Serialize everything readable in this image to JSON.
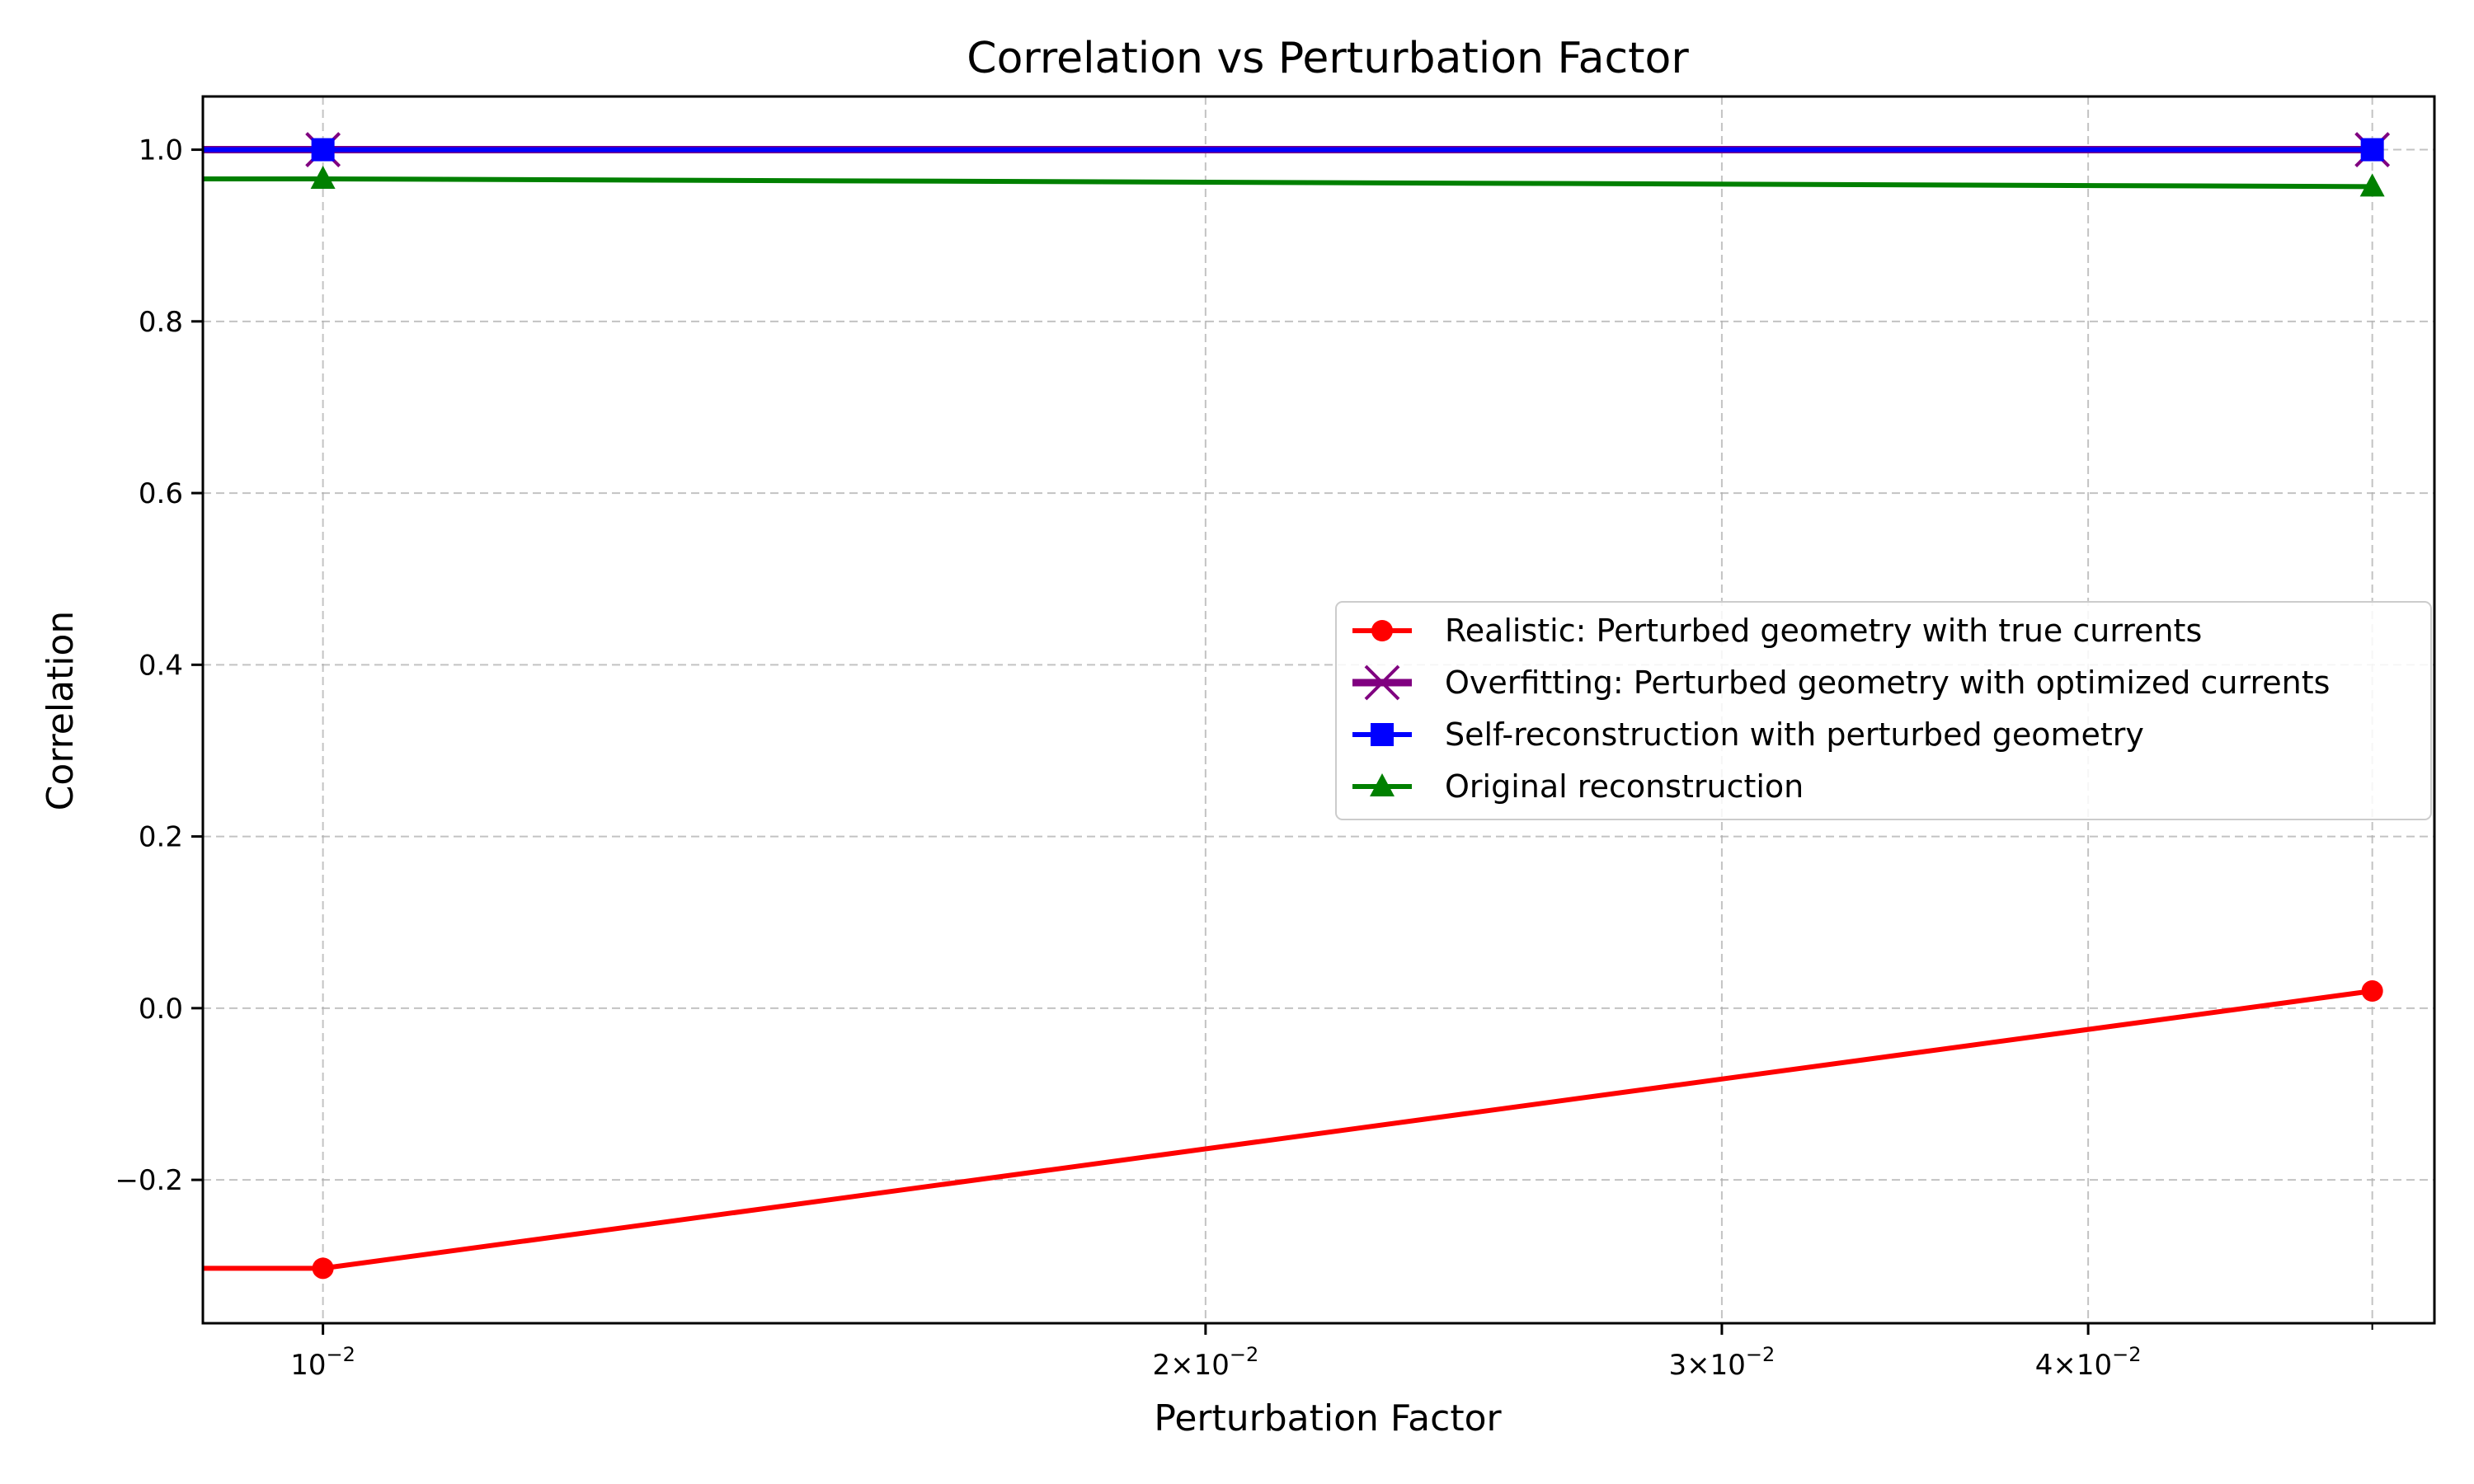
{
  "chart_data": {
    "type": "line",
    "title": "Correlation vs Perturbation Factor",
    "xlabel": "Perturbation Factor",
    "ylabel": "Correlation",
    "xscale": "log",
    "xlim": [
      0.0091,
      0.0525
    ],
    "ylim": [
      -0.367,
      1.062
    ],
    "grid": true,
    "legend_position": "center-right",
    "x_ticks": [
      {
        "value": 0.01,
        "base": "10",
        "exp": "−2"
      },
      {
        "value": 0.02,
        "base": "2×10",
        "exp": "−2"
      },
      {
        "value": 0.03,
        "base": "3×10",
        "exp": "−2"
      },
      {
        "value": 0.04,
        "base": "4×10",
        "exp": "−2"
      }
    ],
    "x_grid_values": [
      0.01,
      0.02,
      0.03,
      0.04,
      0.05
    ],
    "y_ticks": [
      {
        "value": -0.2,
        "label": "−0.2"
      },
      {
        "value": 0.0,
        "label": "0.0"
      },
      {
        "value": 0.2,
        "label": "0.2"
      },
      {
        "value": 0.4,
        "label": "0.4"
      },
      {
        "value": 0.6,
        "label": "0.6"
      },
      {
        "value": 0.8,
        "label": "0.8"
      },
      {
        "value": 1.0,
        "label": "1.0"
      }
    ],
    "series": [
      {
        "name": "Realistic: Perturbed geometry with true currents",
        "color": "#ff0000",
        "marker": "circle",
        "points": [
          [
            0.005,
            -0.303
          ],
          [
            0.01,
            -0.303
          ],
          [
            0.05,
            0.02
          ]
        ],
        "marker_points": [
          [
            0.01,
            -0.303
          ],
          [
            0.05,
            0.02
          ]
        ]
      },
      {
        "name": "Overfitting: Perturbed geometry with optimized currents",
        "color": "#800080",
        "marker": "x",
        "points": [
          [
            0.005,
            1.0
          ],
          [
            0.01,
            1.0
          ],
          [
            0.05,
            1.0
          ]
        ],
        "marker_points": [
          [
            0.01,
            1.0
          ],
          [
            0.05,
            1.0
          ]
        ]
      },
      {
        "name": "Self-reconstruction with perturbed geometry",
        "color": "#0000ff",
        "marker": "square",
        "points": [
          [
            0.005,
            1.0
          ],
          [
            0.01,
            1.0
          ],
          [
            0.05,
            1.0
          ]
        ],
        "marker_points": [
          [
            0.01,
            1.0
          ],
          [
            0.05,
            1.0
          ]
        ]
      },
      {
        "name": "Original reconstruction",
        "color": "#008000",
        "marker": "triangle",
        "points": [
          [
            0.005,
            0.966
          ],
          [
            0.01,
            0.966
          ],
          [
            0.05,
            0.957
          ]
        ],
        "marker_points": [
          [
            0.01,
            0.966
          ],
          [
            0.05,
            0.957
          ]
        ]
      }
    ]
  }
}
